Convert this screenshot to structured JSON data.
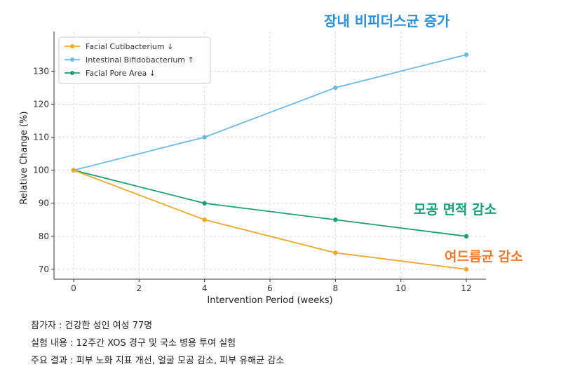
{
  "chart_data": {
    "type": "line",
    "x": [
      0,
      4,
      8,
      12
    ],
    "xlabel": "Intervention Period (weeks)",
    "ylabel": "Relative Change (%)",
    "xlim": [
      -0.6,
      12.6
    ],
    "ylim": [
      67,
      142
    ],
    "xticks": [
      0,
      2,
      4,
      6,
      8,
      10,
      12
    ],
    "yticks": [
      70,
      80,
      90,
      100,
      110,
      120,
      130
    ],
    "grid": true,
    "legend_position": "top-left",
    "series": [
      {
        "name": "Facial Cutibacterium ↓",
        "color": "#E9A92B",
        "values": [
          100,
          85,
          75,
          70
        ]
      },
      {
        "name": "Intestinal Bifidobacterium ↑",
        "color": "#6EB8E8",
        "values": [
          100,
          110,
          125,
          135
        ]
      },
      {
        "name": "Facial Pore Area ↓",
        "color": "#1E9E78",
        "values": [
          100,
          90,
          85,
          80
        ]
      }
    ]
  },
  "annotations": {
    "bifido": {
      "text": "장내 비피더스균 증가",
      "color": "#2D8FD6"
    },
    "pore": {
      "text": "모공 면적 감소",
      "color": "#1E9E78"
    },
    "cuti": {
      "text": "여드름균 감소",
      "color": "#F07A2A"
    }
  },
  "notes": [
    "참가자 : 건강한 성인 여성 77명",
    "실험 내용 : 12주간 XOS 경구 및 국소 병용 투여 실험",
    "주요 결과 : 피부 노화 지표 개선, 얼굴 모공 감소, 피부 유해균 감소"
  ]
}
